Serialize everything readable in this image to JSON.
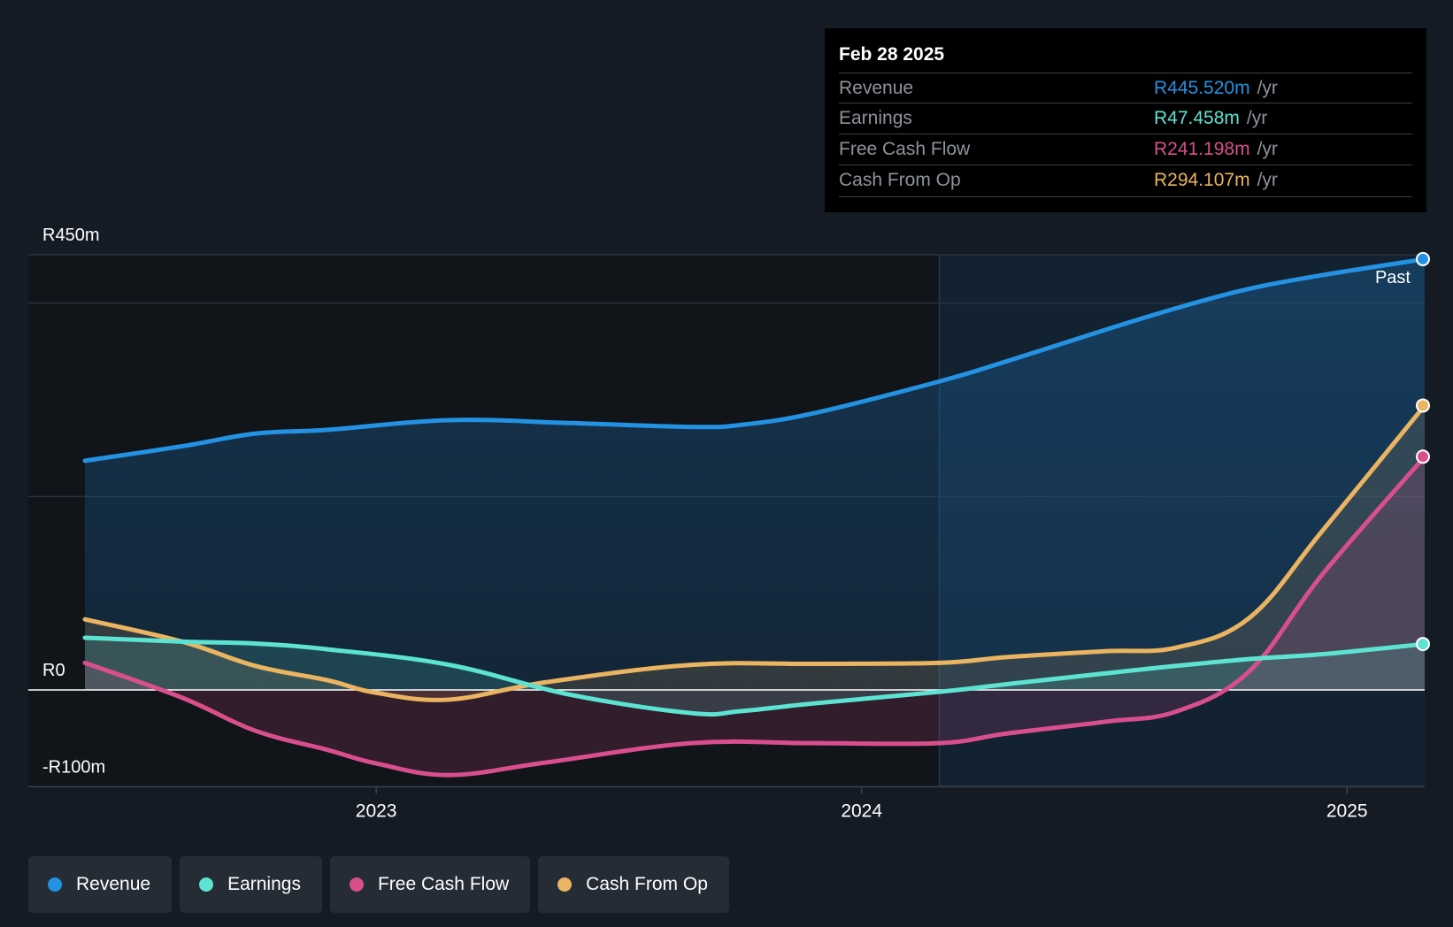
{
  "tooltip": {
    "date": "Feb 28 2025",
    "rows": [
      {
        "label": "Revenue",
        "value": "R445.520m",
        "unit": "/yr",
        "color": "#2392e3"
      },
      {
        "label": "Earnings",
        "value": "R47.458m",
        "unit": "/yr",
        "color": "#5de3d2"
      },
      {
        "label": "Free Cash Flow",
        "value": "R241.198m",
        "unit": "/yr",
        "color": "#d94f8d"
      },
      {
        "label": "Cash From Op",
        "value": "R294.107m",
        "unit": "/yr",
        "color": "#eab461"
      }
    ]
  },
  "legend": [
    {
      "label": "Revenue",
      "color": "#2392e3"
    },
    {
      "label": "Earnings",
      "color": "#5de3d2"
    },
    {
      "label": "Free Cash Flow",
      "color": "#d94f8d"
    },
    {
      "label": "Cash From Op",
      "color": "#eab461"
    }
  ],
  "chart_data": {
    "type": "line",
    "title": "",
    "y_labels": [
      "R450m",
      "R0",
      "-R100m"
    ],
    "ylim": [
      -100,
      450
    ],
    "xlim": [
      2022.4,
      2025.16
    ],
    "x_ticks": [
      {
        "label": "2023",
        "value": 2023.0
      },
      {
        "label": "2024",
        "value": 2024.0
      },
      {
        "label": "2025",
        "value": 2025.0
      }
    ],
    "past_label": "Past",
    "past_start": 2024.16,
    "series": [
      {
        "name": "Revenue",
        "color": "#2392e3",
        "x": [
          2022.4,
          2022.6,
          2022.75,
          2022.9,
          2023.15,
          2023.4,
          2023.65,
          2023.75,
          2023.9,
          2024.16,
          2024.3,
          2024.5,
          2024.65,
          2024.8,
          2024.95,
          2025.16
        ],
        "y": [
          237,
          252,
          265,
          269,
          279,
          276,
          272,
          274,
          286,
          319,
          340,
          372,
          395,
          415,
          429,
          445.5
        ]
      },
      {
        "name": "Earnings",
        "color": "#5de3d2",
        "x": [
          2022.4,
          2022.6,
          2022.75,
          2022.9,
          2023.15,
          2023.4,
          2023.65,
          2023.75,
          2023.9,
          2024.16,
          2024.3,
          2024.5,
          2024.65,
          2024.8,
          2024.95,
          2025.16
        ],
        "y": [
          54,
          50,
          48,
          42,
          26,
          -5,
          -24,
          -22,
          -14,
          -2,
          6,
          17,
          25,
          32,
          37,
          47.5
        ]
      },
      {
        "name": "Free Cash Flow",
        "color": "#d94f8d",
        "x": [
          2022.4,
          2022.6,
          2022.75,
          2022.9,
          2023.0,
          2023.15,
          2023.35,
          2023.65,
          2023.9,
          2024.16,
          2024.3,
          2024.5,
          2024.65,
          2024.8,
          2024.95,
          2025.16
        ],
        "y": [
          28,
          -8,
          -42,
          -62,
          -76,
          -88,
          -75,
          -55,
          -55,
          -55,
          -45,
          -33,
          -22,
          20,
          120,
          241.2
        ]
      },
      {
        "name": "Cash From Op",
        "color": "#eab461",
        "x": [
          2022.4,
          2022.6,
          2022.75,
          2022.9,
          2023.0,
          2023.15,
          2023.35,
          2023.65,
          2023.9,
          2024.16,
          2024.3,
          2024.5,
          2024.65,
          2024.8,
          2024.95,
          2025.16
        ],
        "y": [
          73,
          50,
          25,
          10,
          -3,
          -10,
          8,
          26,
          27,
          28,
          34,
          40,
          44,
          75,
          165,
          294.1
        ]
      }
    ]
  }
}
